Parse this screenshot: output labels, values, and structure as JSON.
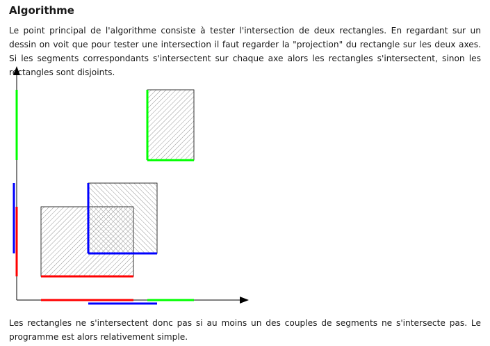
{
  "section": {
    "title": "Algorithme"
  },
  "paragraphs": {
    "intro": "Le point principal de l'algorithme consiste à tester l'intersection de deux rectangles. En regardant sur un dessin on voit que pour tester une intersection il faut regarder la \"projection\" du rectangle sur les deux axes. Si les segments corres­pondants s'intersectent sur chaque axe alors les rectangles s'intersectent, sinon les rectangles sont disjoints.",
    "conclusion": "Les rectangles ne s'intersectent donc pas si au moins un des couples de segments ne s'intersecte pas. Le programme est alors relativement simple."
  },
  "diagram": {
    "colors": {
      "red": "#ff0000",
      "blue": "#0000ff",
      "green": "#00ff00",
      "axis": "#000000",
      "hatch": "#808080"
    }
  }
}
